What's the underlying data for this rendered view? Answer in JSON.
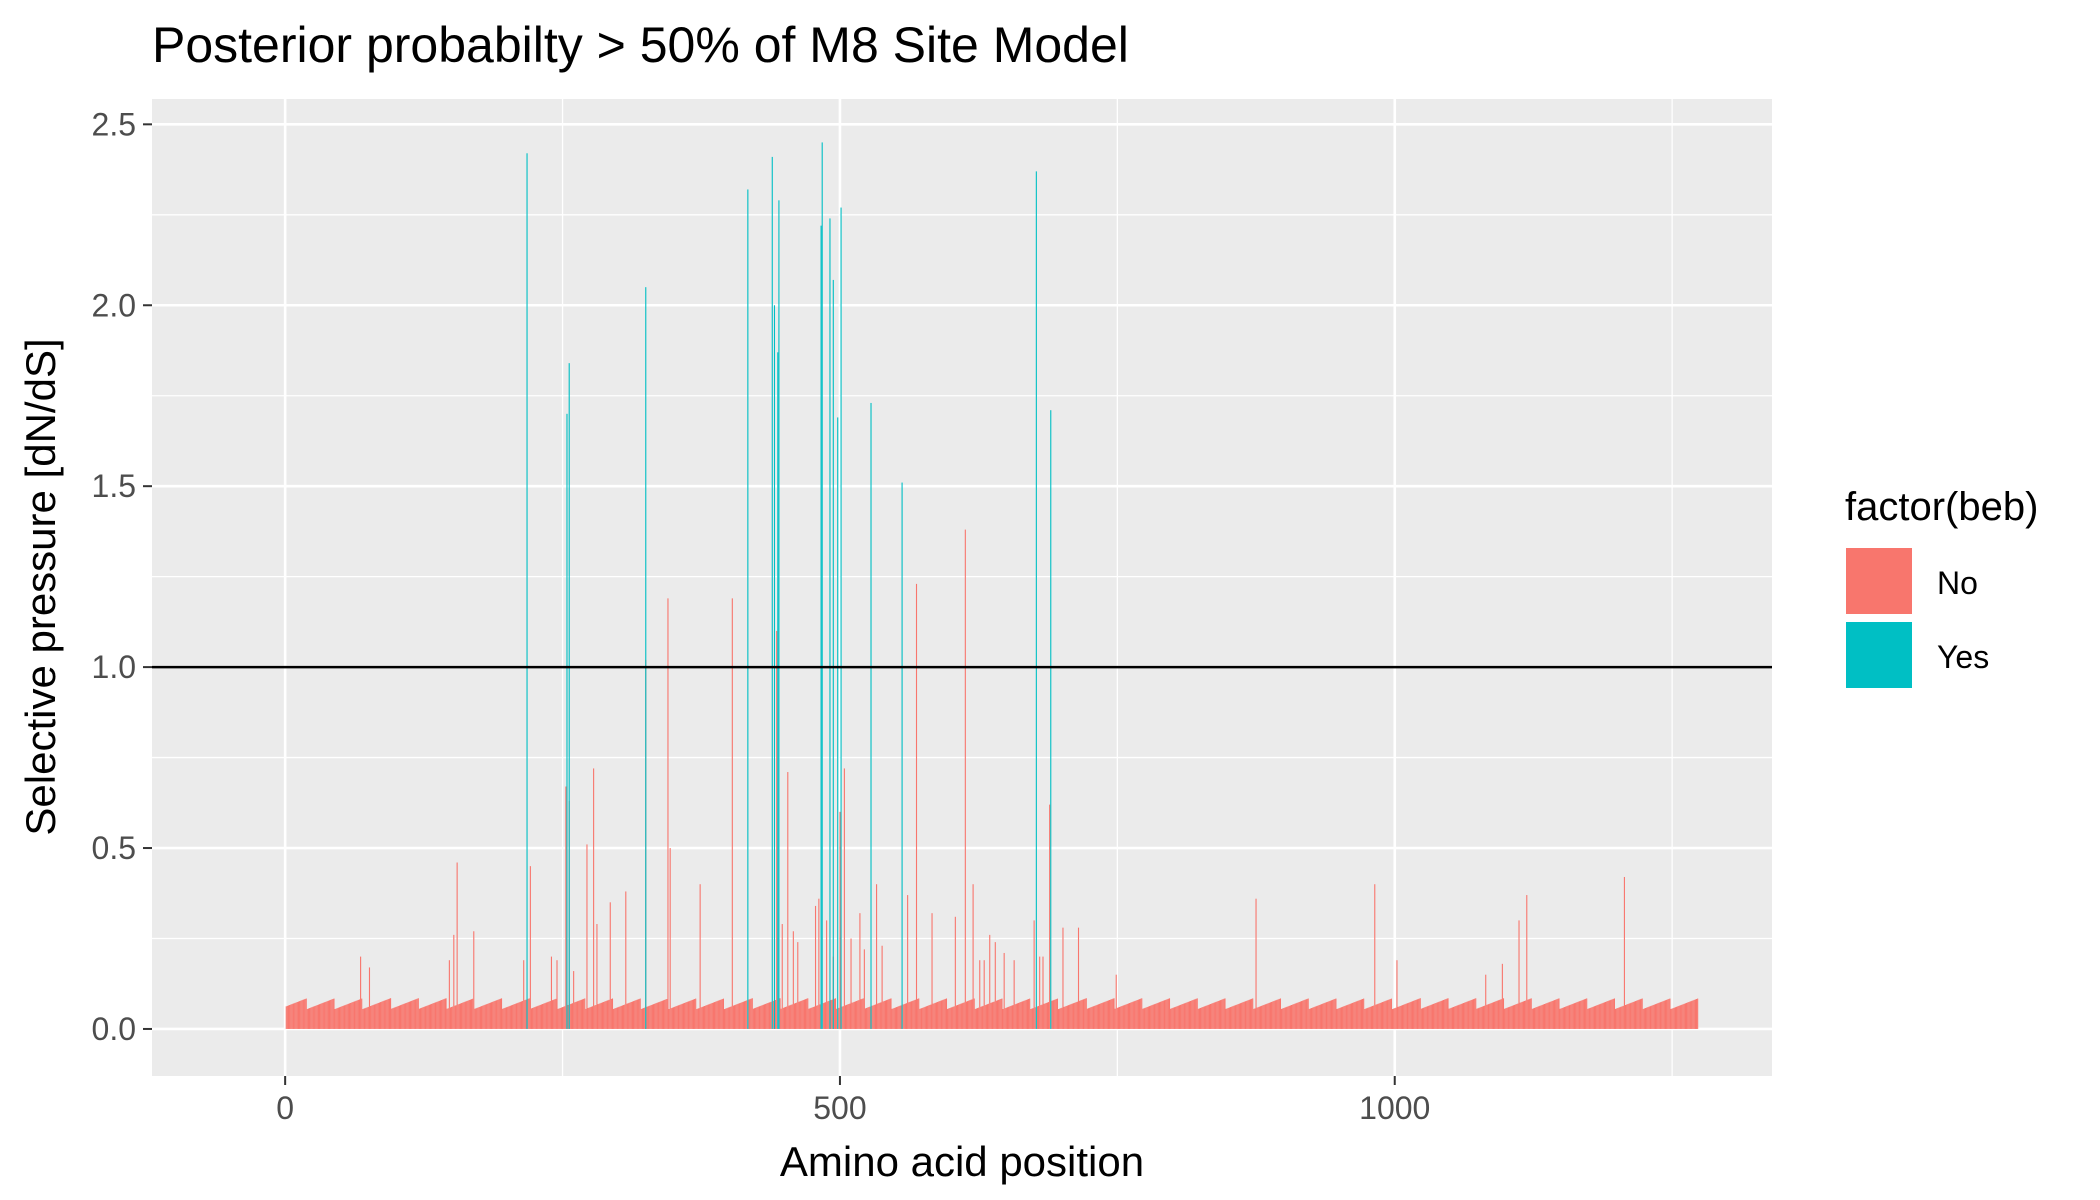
{
  "chart_data": {
    "type": "bar",
    "title": "Posterior probabilty > 50% of M8 Site Model",
    "xlabel": "Amino acid position",
    "ylabel": "Selective pressure [dN/dS]",
    "xlim": [
      -120,
      1340
    ],
    "ylim": [
      -0.13,
      2.57
    ],
    "xticks": [
      0,
      500,
      1000
    ],
    "yticks": [
      0.0,
      0.5,
      1.0,
      1.5,
      2.0,
      2.5
    ],
    "ytick_labels": [
      "0.0",
      "0.5",
      "1.0",
      "1.5",
      "2.0",
      "2.5"
    ],
    "x_range": [
      1,
      1273
    ],
    "baseline_value": 0.07,
    "reference_line": 1.0,
    "grid": true,
    "legend": {
      "title": "factor(beb)",
      "position": "right",
      "entries": [
        {
          "label": "No",
          "color": "#F8766D"
        },
        {
          "label": "Yes",
          "color": "#00BFC4"
        }
      ]
    },
    "series": [
      {
        "name": "No",
        "color": "#F8766D",
        "points": [
          [
            68,
            0.2
          ],
          [
            76,
            0.17
          ],
          [
            148,
            0.19
          ],
          [
            152,
            0.26
          ],
          [
            155,
            0.46
          ],
          [
            170,
            0.27
          ],
          [
            215,
            0.19
          ],
          [
            221,
            0.45
          ],
          [
            240,
            0.2
          ],
          [
            245,
            0.19
          ],
          [
            253,
            0.67
          ],
          [
            256,
            0.63
          ],
          [
            260,
            0.16
          ],
          [
            272,
            0.51
          ],
          [
            278,
            0.72
          ],
          [
            281,
            0.29
          ],
          [
            293,
            0.35
          ],
          [
            307,
            0.38
          ],
          [
            325,
            1.02
          ],
          [
            345,
            1.19
          ],
          [
            347,
            0.5
          ],
          [
            374,
            0.4
          ],
          [
            403,
            1.19
          ],
          [
            443,
            1.1
          ],
          [
            448,
            0.29
          ],
          [
            453,
            0.71
          ],
          [
            458,
            0.27
          ],
          [
            462,
            0.24
          ],
          [
            478,
            0.34
          ],
          [
            481,
            0.36
          ],
          [
            488,
            0.3
          ],
          [
            494,
            0.2
          ],
          [
            500,
            0.6
          ],
          [
            504,
            0.72
          ],
          [
            510,
            0.25
          ],
          [
            518,
            0.32
          ],
          [
            522,
            0.22
          ],
          [
            533,
            0.4
          ],
          [
            538,
            0.23
          ],
          [
            561,
            0.37
          ],
          [
            569,
            1.23
          ],
          [
            583,
            0.32
          ],
          [
            604,
            0.31
          ],
          [
            613,
            1.38
          ],
          [
            620,
            0.4
          ],
          [
            626,
            0.19
          ],
          [
            630,
            0.19
          ],
          [
            635,
            0.26
          ],
          [
            640,
            0.24
          ],
          [
            648,
            0.21
          ],
          [
            657,
            0.19
          ],
          [
            675,
            0.3
          ],
          [
            680,
            0.2
          ],
          [
            683,
            0.2
          ],
          [
            689,
            0.62
          ],
          [
            701,
            0.28
          ],
          [
            715,
            0.28
          ],
          [
            749,
            0.15
          ],
          [
            875,
            0.36
          ],
          [
            982,
            0.4
          ],
          [
            1002,
            0.19
          ],
          [
            1082,
            0.15
          ],
          [
            1097,
            0.18
          ],
          [
            1112,
            0.3
          ],
          [
            1119,
            0.37
          ],
          [
            1207,
            0.42
          ]
        ]
      },
      {
        "name": "Yes",
        "color": "#00BFC4",
        "points": [
          [
            218,
            2.42
          ],
          [
            254,
            1.7
          ],
          [
            256,
            1.84
          ],
          [
            325,
            2.05
          ],
          [
            417,
            2.32
          ],
          [
            439,
            2.41
          ],
          [
            441,
            2.0
          ],
          [
            444,
            1.87
          ],
          [
            445,
            2.29
          ],
          [
            483,
            2.22
          ],
          [
            484,
            2.45
          ],
          [
            491,
            2.24
          ],
          [
            494,
            2.07
          ],
          [
            498,
            1.69
          ],
          [
            501,
            2.27
          ],
          [
            528,
            1.73
          ],
          [
            556,
            1.51
          ],
          [
            677,
            2.37
          ],
          [
            690,
            1.71
          ]
        ]
      }
    ]
  }
}
